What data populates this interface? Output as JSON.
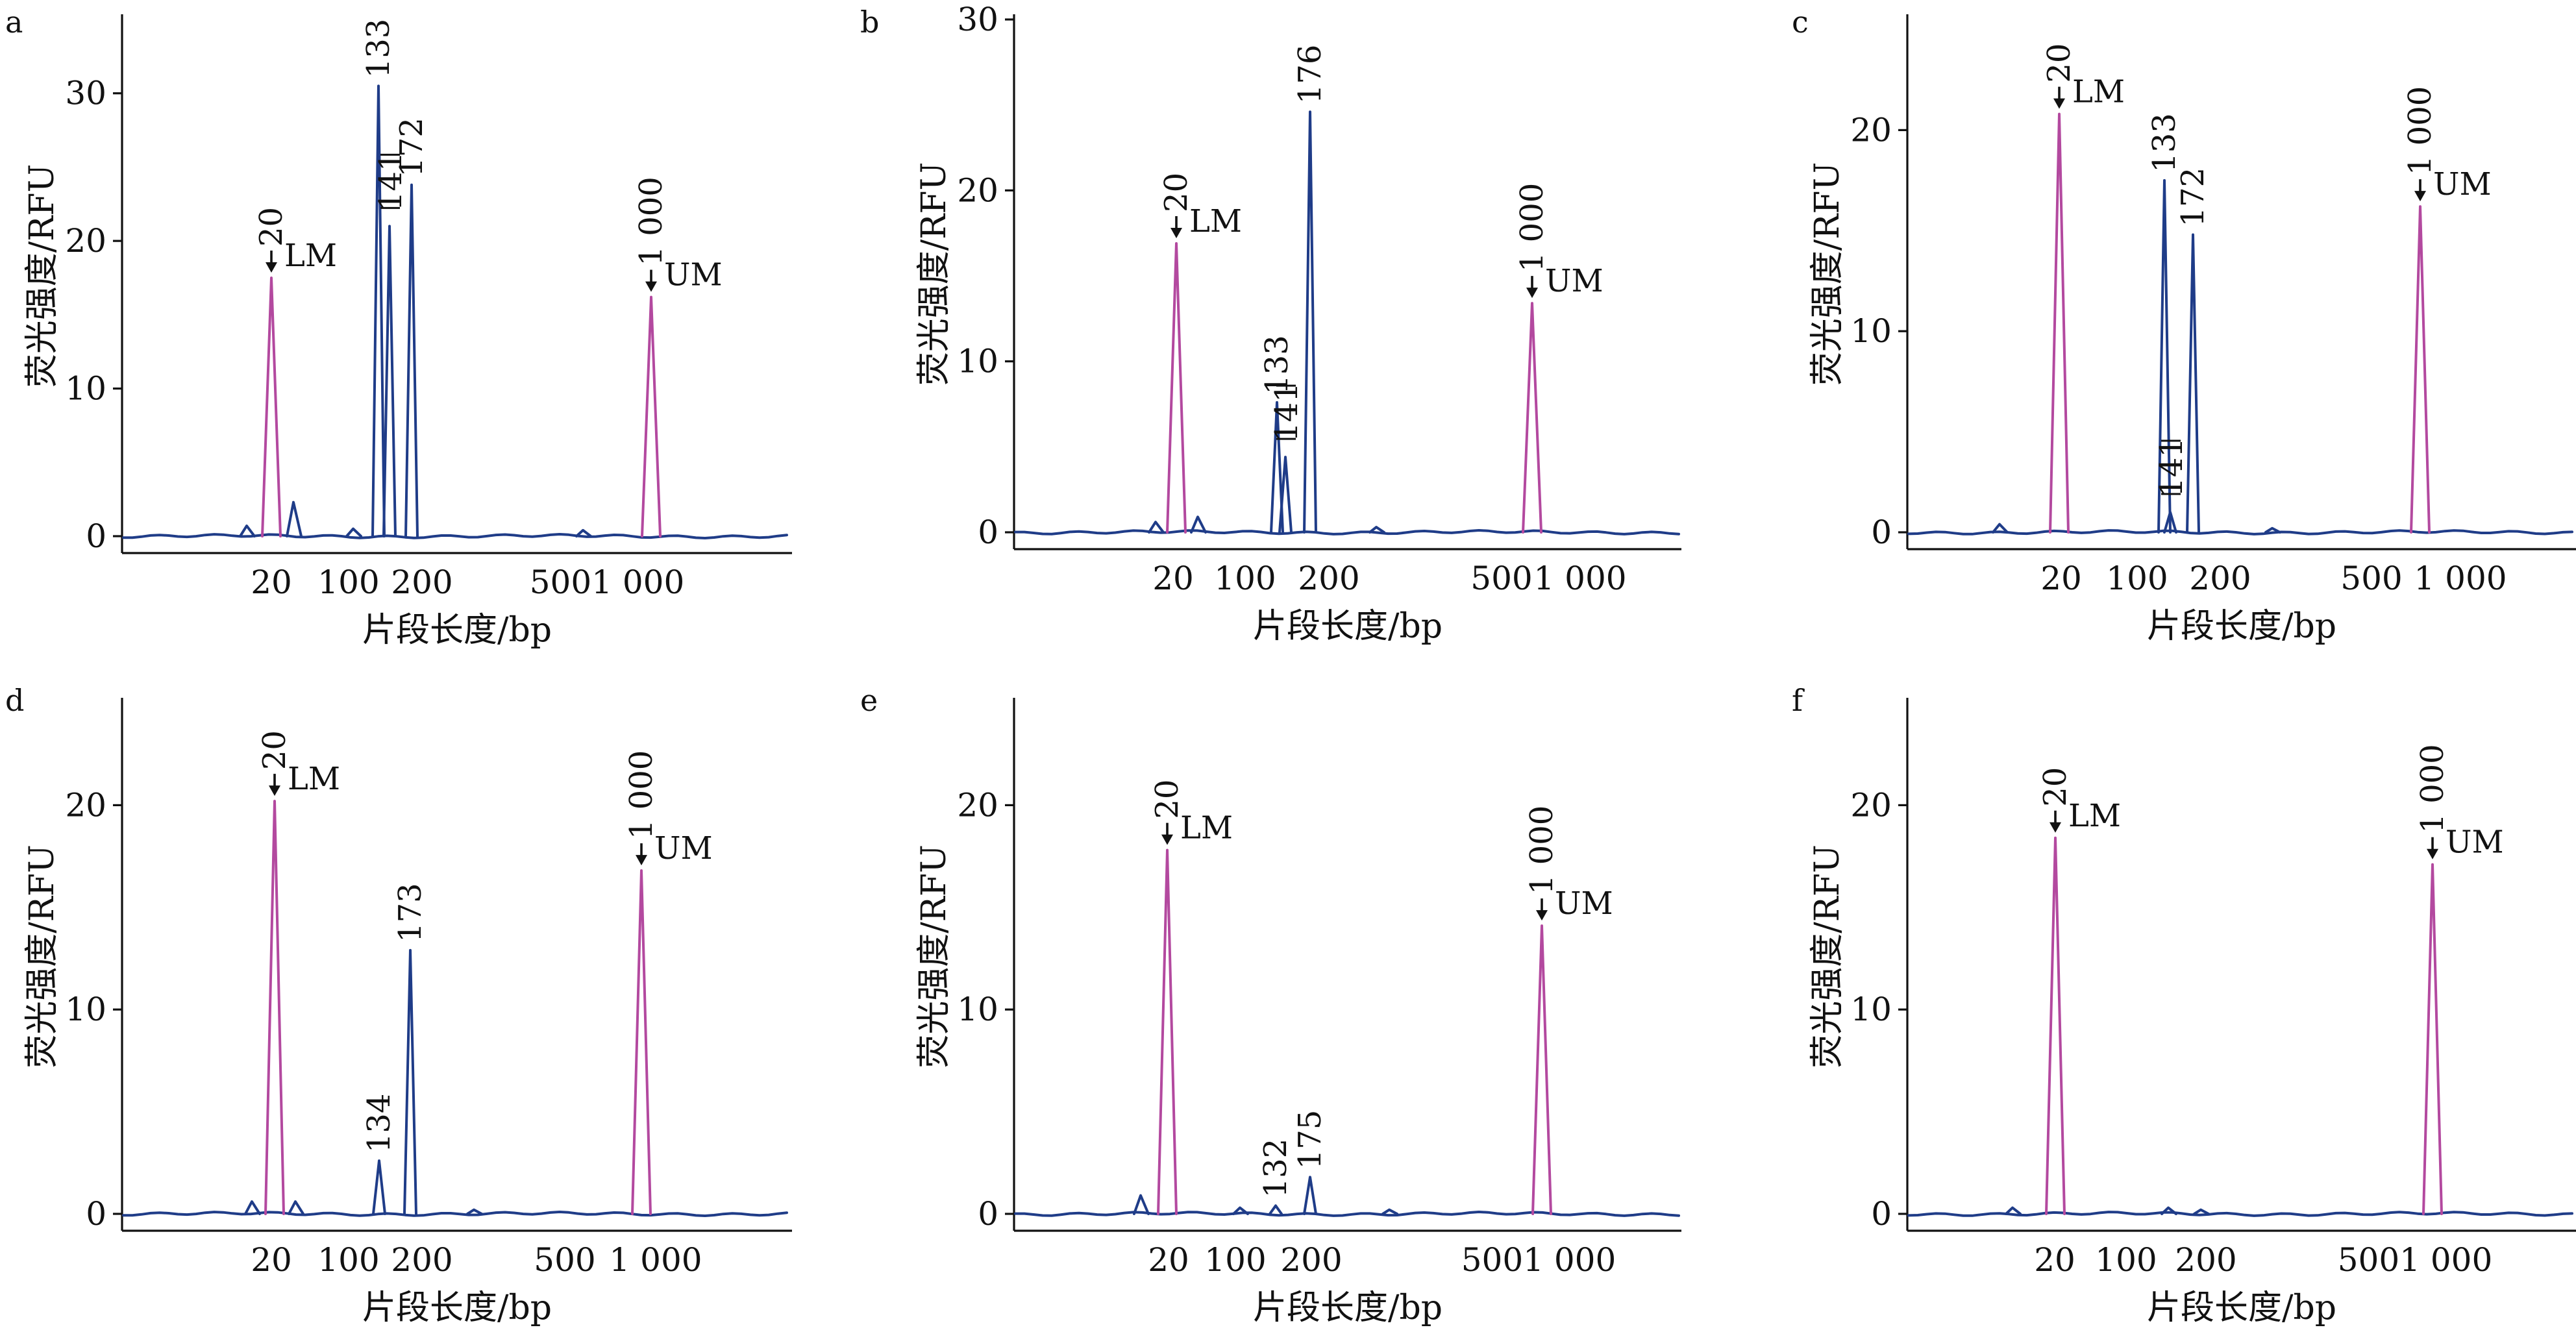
{
  "colors": {
    "sample": "#1f3c88",
    "marker": "#b3499f",
    "axis": "#111111"
  },
  "common": {
    "xlabel": "片段长度/bp",
    "ylabel": "荧光强度/RFU"
  },
  "chart_data": [
    {
      "panel": "a",
      "type": "line",
      "xticks": [
        "20",
        "100",
        "200",
        "5001 000"
      ],
      "ylim": [
        0,
        35
      ],
      "yticks": [
        0,
        10,
        20,
        30
      ],
      "peaks": [
        {
          "label": "20",
          "marker": "LM",
          "height": 17.5,
          "arrow": true
        },
        {
          "label": "133",
          "height": 30.5
        },
        {
          "label": "141",
          "height": 21.0,
          "bracket": true
        },
        {
          "label": "172",
          "height": 23.8
        },
        {
          "label": "1 000",
          "marker": "UM",
          "height": 16.2,
          "arrow": true
        }
      ],
      "minor_peaks": [
        {
          "position": "~15",
          "height": 0.7
        },
        {
          "position": "~25",
          "height": 2.3
        }
      ]
    },
    {
      "panel": "b",
      "type": "line",
      "xticks": [
        "20",
        "100",
        "200",
        "500",
        "1 000"
      ],
      "ylim": [
        0,
        30
      ],
      "yticks": [
        0,
        10,
        20,
        30
      ],
      "peaks": [
        {
          "label": "20",
          "marker": "LM",
          "height": 16.9,
          "arrow": true
        },
        {
          "label": "133",
          "height": 7.6
        },
        {
          "label": "141",
          "height": 4.4,
          "bracket": true
        },
        {
          "label": "176",
          "height": 24.6
        },
        {
          "label": "1 000",
          "marker": "UM",
          "height": 13.4,
          "arrow": true
        }
      ]
    },
    {
      "panel": "c",
      "type": "line",
      "xticks": [
        "20",
        "100",
        "200",
        "500",
        "1 000"
      ],
      "ylim": [
        0,
        25
      ],
      "yticks": [
        0,
        10,
        20
      ],
      "peaks": [
        {
          "label": "20",
          "marker": "LM",
          "height": 20.8,
          "arrow": true
        },
        {
          "label": "133",
          "height": 17.5
        },
        {
          "label": "141",
          "height": 1.0,
          "bracket": true
        },
        {
          "label": "172",
          "height": 14.8
        },
        {
          "label": "1 000",
          "marker": "UM",
          "height": 16.2,
          "arrow": true
        }
      ]
    },
    {
      "panel": "d",
      "type": "line",
      "xticks": [
        "20",
        "100",
        "200",
        "500",
        "1 000"
      ],
      "ylim": [
        0,
        25
      ],
      "yticks": [
        0,
        10,
        20
      ],
      "peaks": [
        {
          "label": "20",
          "marker": "LM",
          "height": 20.2,
          "arrow": true
        },
        {
          "label": "134",
          "height": 2.6
        },
        {
          "label": "173",
          "height": 12.9
        },
        {
          "label": "1 000",
          "marker": "UM",
          "height": 16.8,
          "arrow": true
        }
      ]
    },
    {
      "panel": "e",
      "type": "line",
      "xticks": [
        "20",
        "100",
        "200",
        "5001 000"
      ],
      "ylim": [
        0,
        25
      ],
      "yticks": [
        0,
        10,
        20
      ],
      "peaks": [
        {
          "label": "20",
          "marker": "LM",
          "height": 17.8,
          "arrow": true
        },
        {
          "label": "132",
          "height": 0.4
        },
        {
          "label": "175",
          "height": 1.8
        },
        {
          "label": "1 000",
          "marker": "UM",
          "height": 14.1,
          "arrow": true
        }
      ]
    },
    {
      "panel": "f",
      "type": "line",
      "xticks": [
        "20",
        "100",
        "200",
        "5001 000"
      ],
      "ylim": [
        0,
        25
      ],
      "yticks": [
        0,
        10,
        20
      ],
      "peaks": [
        {
          "label": "20",
          "marker": "LM",
          "height": 18.4,
          "arrow": true
        },
        {
          "label": "1 000",
          "marker": "UM",
          "height": 17.1,
          "arrow": true
        }
      ]
    }
  ]
}
